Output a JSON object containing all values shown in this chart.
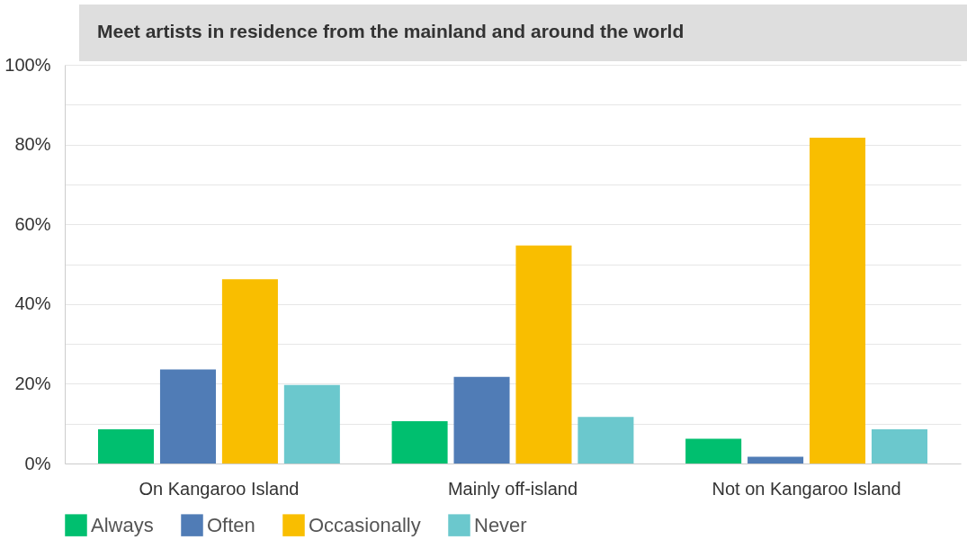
{
  "chart_data": {
    "type": "bar",
    "title": "Meet artists in residence from the mainland and around the world",
    "categories": [
      "On Kangaroo Island",
      "Mainly off-island",
      "Not on Kangaroo Island"
    ],
    "series": [
      {
        "name": "Always",
        "color": "#00bf6f",
        "values": [
          8.6,
          10.6,
          6.2
        ]
      },
      {
        "name": "Often",
        "color": "#507cb6",
        "values": [
          23.6,
          21.7,
          1.7
        ]
      },
      {
        "name": "Occasionally",
        "color": "#f9be00",
        "values": [
          46.2,
          54.7,
          81.7
        ]
      },
      {
        "name": "Never",
        "color": "#6bc8cd",
        "values": [
          19.7,
          11.7,
          8.6
        ]
      }
    ],
    "ylim": [
      0,
      100
    ],
    "yticks": [
      {
        "value": 0,
        "label": "0%"
      },
      {
        "value": 10,
        "label": null
      },
      {
        "value": 20,
        "label": "20%"
      },
      {
        "value": 30,
        "label": null
      },
      {
        "value": 40,
        "label": "40%"
      },
      {
        "value": 50,
        "label": null
      },
      {
        "value": 60,
        "label": "60%"
      },
      {
        "value": 70,
        "label": null
      },
      {
        "value": 80,
        "label": "80%"
      },
      {
        "value": 90,
        "label": null
      },
      {
        "value": 100,
        "label": "100%"
      }
    ],
    "grid": true,
    "legend": "bottom left"
  }
}
